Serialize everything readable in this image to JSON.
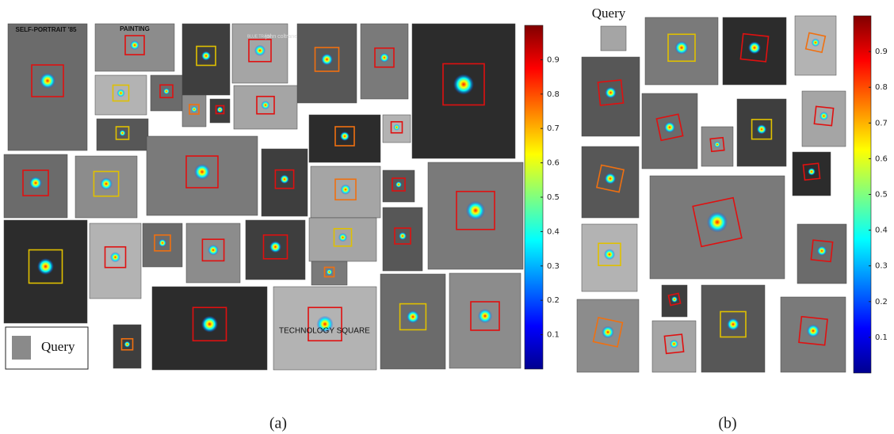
{
  "panels": [
    {
      "label": "(a)",
      "query": "Query",
      "texts": [
        "SELF-PORTRAIT '85",
        "BLUE TRAIN",
        "john coltrane",
        "PAINTING",
        "TECHNOLOGY SQUARE"
      ],
      "colorbar": {
        "clim": [
          0,
          1
        ],
        "ticks": [
          0.1,
          0.2,
          0.3,
          0.4,
          0.5,
          0.6,
          0.7,
          0.8,
          0.9
        ]
      }
    },
    {
      "label": "(b)",
      "query": "Query",
      "colorbar": {
        "clim": [
          0,
          1
        ],
        "ticks": [
          0.1,
          0.2,
          0.3,
          0.4,
          0.5,
          0.6,
          0.7,
          0.8,
          0.9
        ]
      }
    }
  ]
}
